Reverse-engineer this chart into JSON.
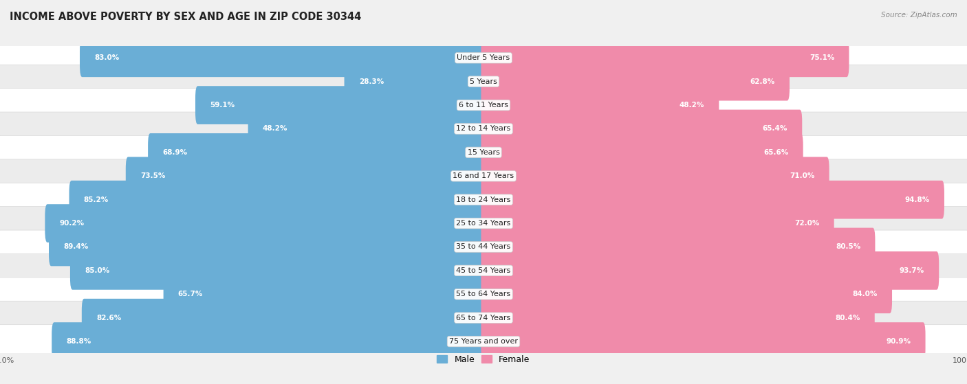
{
  "title": "INCOME ABOVE POVERTY BY SEX AND AGE IN ZIP CODE 30344",
  "source": "Source: ZipAtlas.com",
  "categories": [
    "Under 5 Years",
    "5 Years",
    "6 to 11 Years",
    "12 to 14 Years",
    "15 Years",
    "16 and 17 Years",
    "18 to 24 Years",
    "25 to 34 Years",
    "35 to 44 Years",
    "45 to 54 Years",
    "55 to 64 Years",
    "65 to 74 Years",
    "75 Years and over"
  ],
  "male_values": [
    83.0,
    28.3,
    59.1,
    48.2,
    68.9,
    73.5,
    85.2,
    90.2,
    89.4,
    85.0,
    65.7,
    82.6,
    88.8
  ],
  "female_values": [
    75.1,
    62.8,
    48.2,
    65.4,
    65.6,
    71.0,
    94.8,
    72.0,
    80.5,
    93.7,
    84.0,
    80.4,
    90.9
  ],
  "male_color": "#6aaed6",
  "female_color": "#f08baa",
  "male_label": "Male",
  "female_label": "Female",
  "bg_color": "#f0f0f0",
  "row_color_odd": "#f5f5f5",
  "row_color_even": "#e8e8e8",
  "max_value": 100.0,
  "title_fontsize": 10.5,
  "label_fontsize": 8,
  "value_fontsize": 7.5,
  "axis_fontsize": 8
}
